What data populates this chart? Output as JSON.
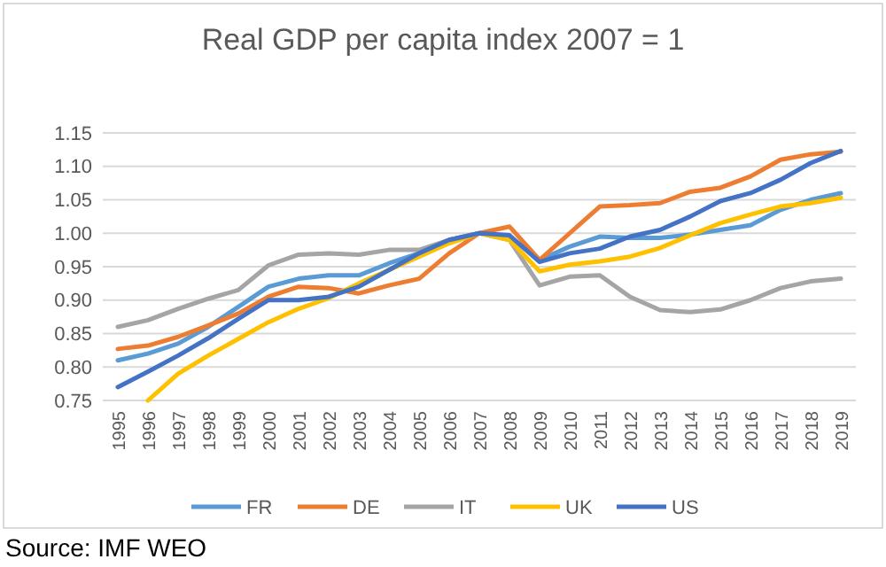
{
  "chart_data": {
    "type": "line",
    "title": "Real GDP per capita index 2007 = 1",
    "categories": [
      "1995",
      "1996",
      "1997",
      "1998",
      "1999",
      "2000",
      "2001",
      "2002",
      "2003",
      "2004",
      "2005",
      "2006",
      "2007",
      "2008",
      "2009",
      "2010",
      "2011",
      "2012",
      "2013",
      "2014",
      "2015",
      "2016",
      "2017",
      "2018",
      "2019"
    ],
    "series": [
      {
        "name": "FR",
        "color": "#5b9bd5",
        "values": [
          0.81,
          0.82,
          0.835,
          0.86,
          0.89,
          0.92,
          0.932,
          0.937,
          0.937,
          0.955,
          0.97,
          0.99,
          1.0,
          0.995,
          0.96,
          0.98,
          0.995,
          0.993,
          0.993,
          0.998,
          1.005,
          1.012,
          1.035,
          1.05,
          1.06
        ]
      },
      {
        "name": "DE",
        "color": "#ed7d31",
        "values": [
          0.827,
          0.832,
          0.845,
          0.862,
          0.88,
          0.905,
          0.92,
          0.918,
          0.91,
          0.922,
          0.932,
          0.97,
          1.0,
          1.01,
          0.96,
          1.0,
          1.04,
          1.042,
          1.045,
          1.062,
          1.068,
          1.085,
          1.11,
          1.118,
          1.122
        ]
      },
      {
        "name": "IT",
        "color": "#a5a5a5",
        "values": [
          0.86,
          0.87,
          0.887,
          0.902,
          0.915,
          0.952,
          0.968,
          0.97,
          0.968,
          0.975,
          0.975,
          0.99,
          1.0,
          0.99,
          0.922,
          0.935,
          0.937,
          0.905,
          0.885,
          0.882,
          0.886,
          0.9,
          0.918,
          0.928,
          0.932
        ]
      },
      {
        "name": "UK",
        "color": "#ffc000",
        "values": [
          null,
          0.75,
          0.79,
          0.817,
          0.842,
          0.867,
          0.887,
          0.903,
          0.925,
          0.945,
          0.965,
          0.985,
          1.0,
          0.99,
          0.943,
          0.953,
          0.958,
          0.965,
          0.978,
          0.997,
          1.015,
          1.028,
          1.04,
          1.045,
          1.053
        ]
      },
      {
        "name": "US",
        "color": "#4472c4",
        "values": [
          0.77,
          0.793,
          0.817,
          0.843,
          0.872,
          0.9,
          0.9,
          0.905,
          0.92,
          0.945,
          0.97,
          0.99,
          1.0,
          0.997,
          0.957,
          0.97,
          0.977,
          0.995,
          1.005,
          1.025,
          1.048,
          1.06,
          1.08,
          1.105,
          1.123
        ]
      }
    ],
    "ylim": [
      0.75,
      1.15
    ],
    "yticks": [
      {
        "value": 0.75,
        "label": "0.75"
      },
      {
        "value": 0.8,
        "label": "0.80"
      },
      {
        "value": 0.85,
        "label": "0.85"
      },
      {
        "value": 0.9,
        "label": "0.90"
      },
      {
        "value": 0.95,
        "label": "0.95"
      },
      {
        "value": 1.0,
        "label": "1.00"
      },
      {
        "value": 1.05,
        "label": "1.05"
      },
      {
        "value": 1.1,
        "label": "1.10"
      },
      {
        "value": 1.15,
        "label": "1.15"
      }
    ],
    "grid": "y",
    "legend": "bottom",
    "marker": "none",
    "line_style": "solid",
    "annotations": [
      "Source: IMF WEO"
    ]
  }
}
